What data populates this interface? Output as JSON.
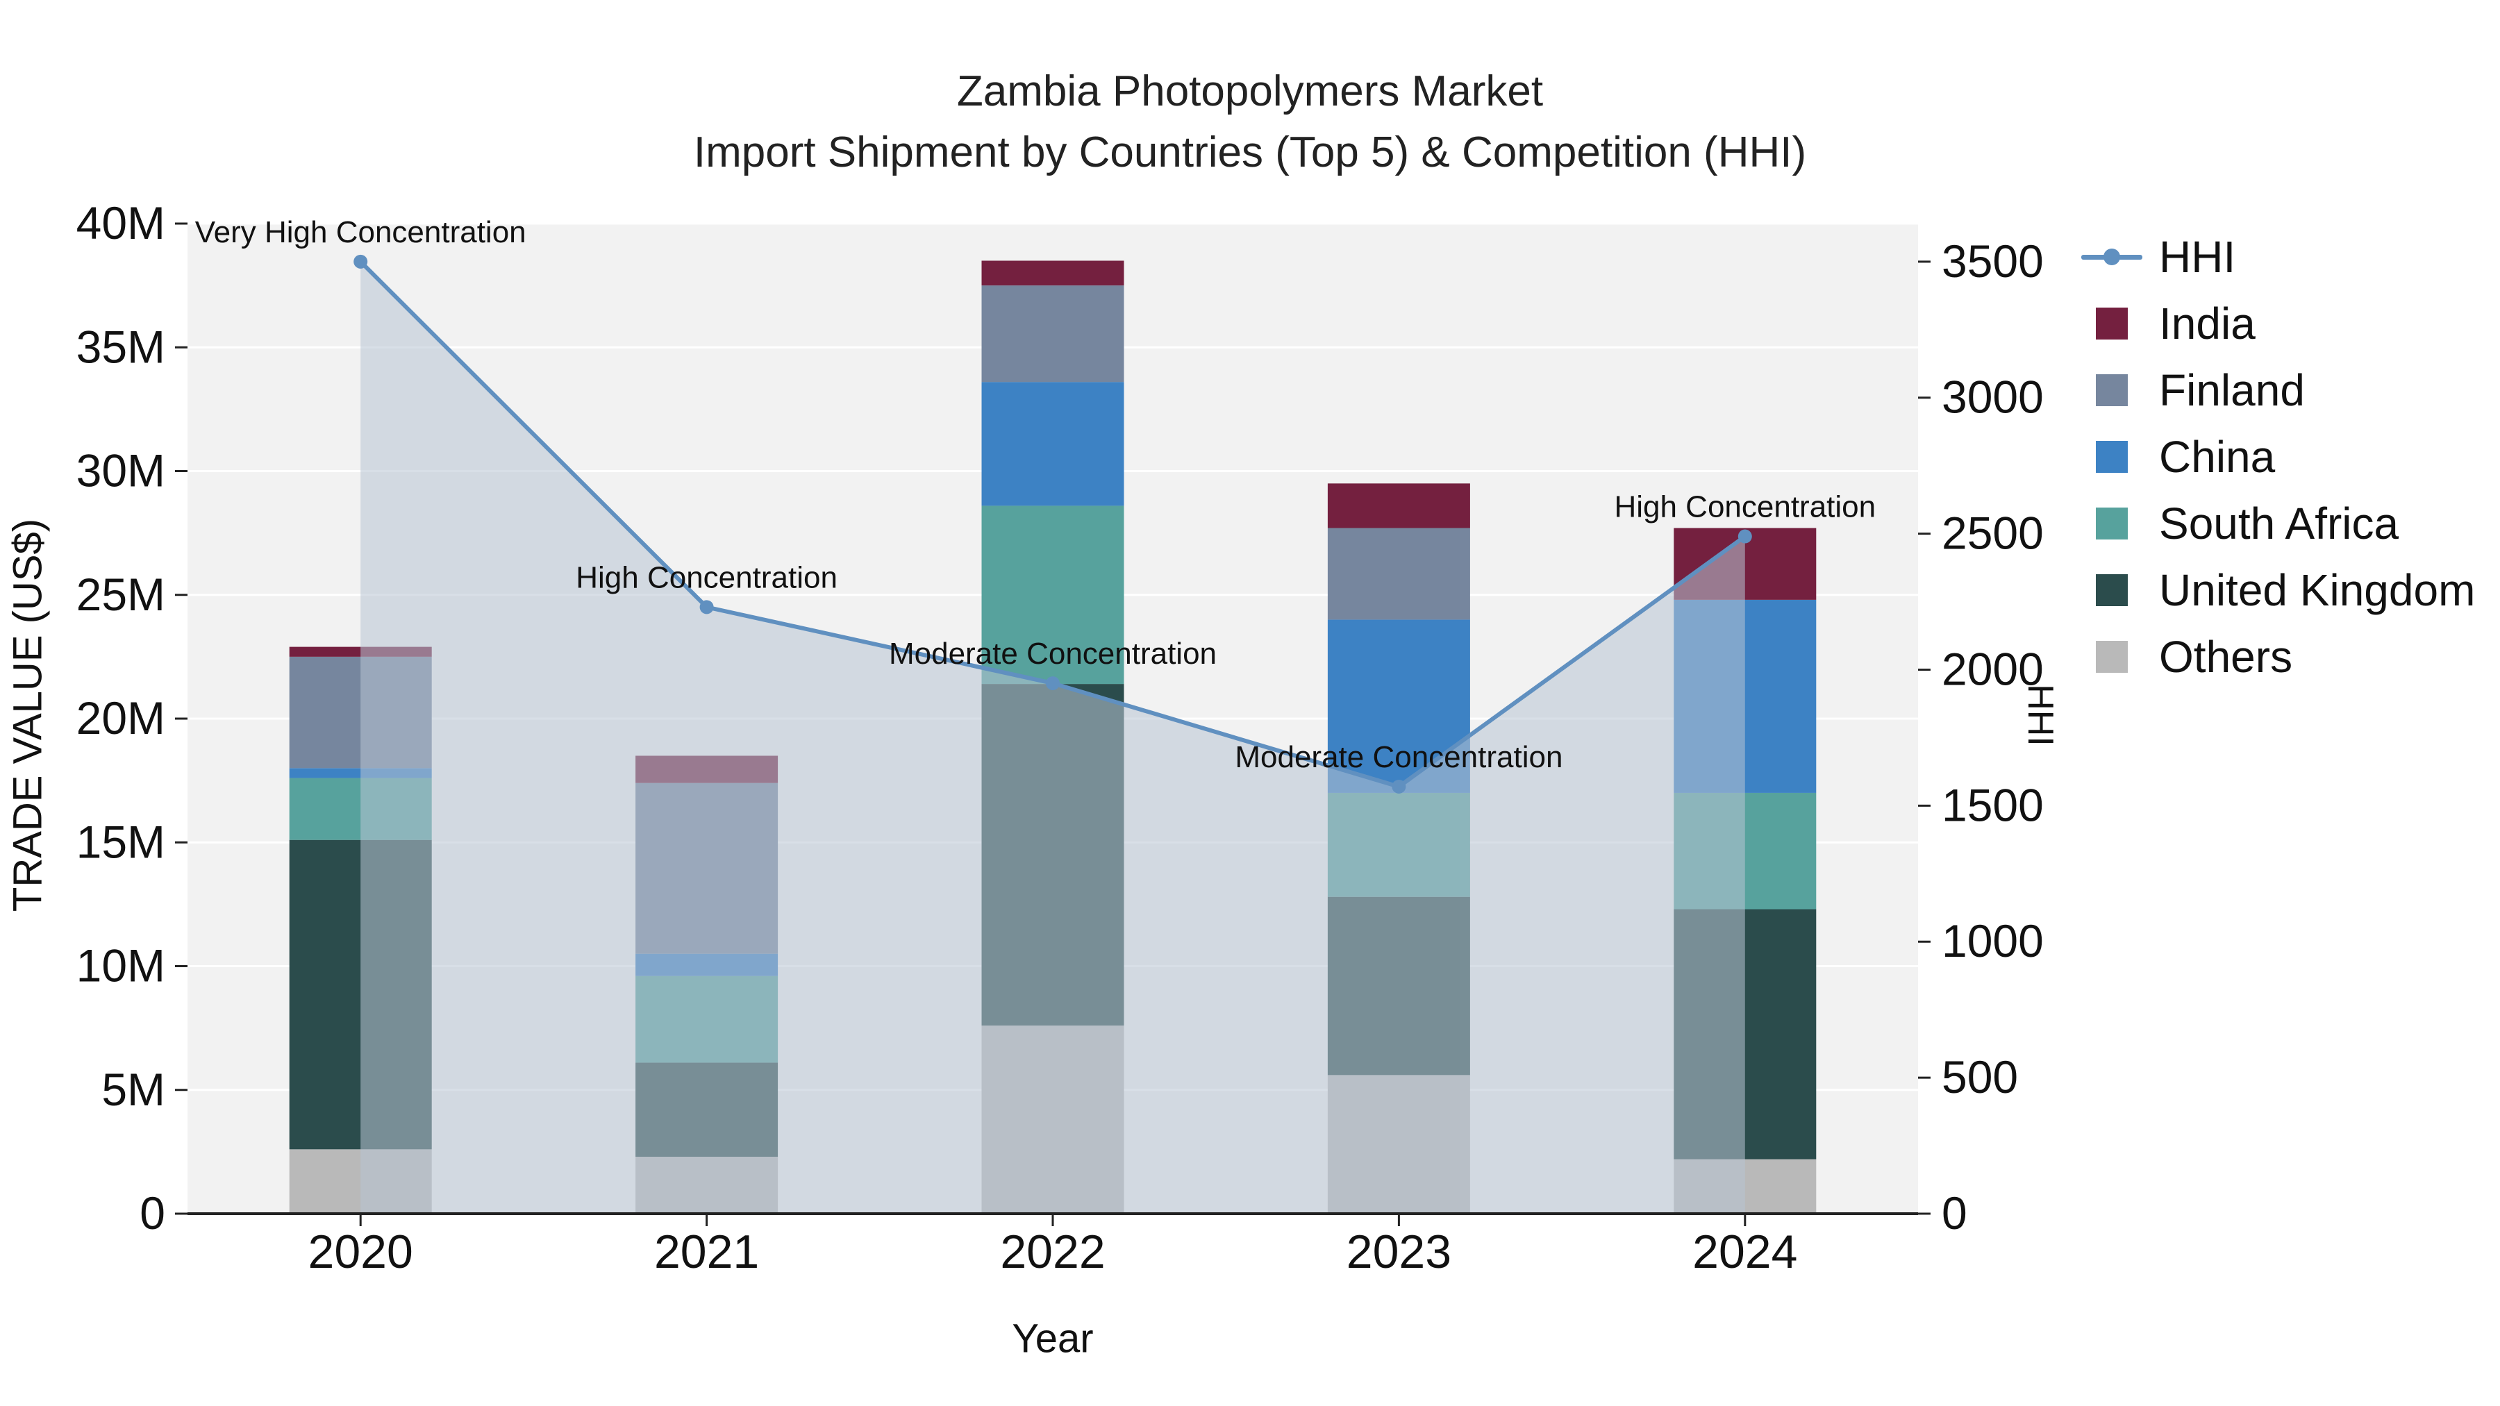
{
  "title": {
    "line1": "Zambia Photopolymers Market",
    "line2": "Import Shipment by Countries (Top 5) & Competition (HHI)"
  },
  "chart_data": {
    "type": "bar",
    "subtype": "stacked-bars-with-line-overlay",
    "unit_bars": "US$ millions",
    "unit_line": "HHI index",
    "categories": [
      "2020",
      "2021",
      "2022",
      "2023",
      "2024"
    ],
    "bar_series_bottom_to_top": [
      {
        "name": "Others",
        "color": "#b9b9b9",
        "values": [
          2.6,
          2.3,
          7.6,
          5.6,
          2.2
        ]
      },
      {
        "name": "United Kingdom",
        "color": "#2b4c4c",
        "values": [
          12.5,
          3.8,
          13.8,
          7.2,
          10.1
        ]
      },
      {
        "name": "South Africa",
        "color": "#57a29d",
        "values": [
          2.5,
          3.5,
          7.2,
          4.2,
          4.7
        ]
      },
      {
        "name": "China",
        "color": "#3d82c4",
        "values": [
          0.4,
          0.9,
          5.0,
          7.0,
          7.8
        ]
      },
      {
        "name": "Finland",
        "color": "#76869e",
        "values": [
          4.5,
          6.9,
          3.9,
          3.7,
          0
        ]
      },
      {
        "name": "India",
        "color": "#74203f",
        "values": [
          0.4,
          1.1,
          1.0,
          1.8,
          2.9
        ]
      }
    ],
    "line_series": {
      "name": "HHI",
      "color": "#6090c0",
      "area_fill": "rgba(184,196,212,0.55)",
      "values": [
        3500,
        2230,
        1950,
        1570,
        2490
      ]
    },
    "annotations": [
      "Very High Concentration",
      "High Concentration",
      "Moderate Concentration",
      "Moderate Concentration",
      "High Concentration"
    ],
    "axes": {
      "left": {
        "label": "TRADE VALUE (US$)",
        "ticks": [
          "0",
          "5M",
          "10M",
          "15M",
          "20M",
          "25M",
          "30M",
          "35M",
          "40M"
        ],
        "tick_values": [
          0,
          5,
          10,
          15,
          20,
          25,
          30,
          35,
          40
        ],
        "max": 40
      },
      "right": {
        "label": "HHI",
        "ticks": [
          "0",
          "500",
          "1000",
          "1500",
          "2000",
          "2500",
          "3000",
          "3500"
        ],
        "tick_values": [
          0,
          500,
          1000,
          1500,
          2000,
          2500,
          3000,
          3500
        ],
        "max": 3640
      },
      "x": {
        "label": "Year"
      }
    },
    "legend": [
      {
        "name": "HHI",
        "type": "line",
        "color": "#6090c0"
      },
      {
        "name": "India",
        "type": "square",
        "color": "#74203f"
      },
      {
        "name": "Finland",
        "type": "square",
        "color": "#76869e"
      },
      {
        "name": "China",
        "type": "square",
        "color": "#3d82c4"
      },
      {
        "name": "South Africa",
        "type": "square",
        "color": "#57a29d"
      },
      {
        "name": "United Kingdom",
        "type": "square",
        "color": "#2b4c4c"
      },
      {
        "name": "Others",
        "type": "square",
        "color": "#b9b9b9"
      }
    ],
    "style": {
      "plot_background": "#f2f2f2",
      "gridline_color": "#ffffff",
      "axis_color": "#222222",
      "text_color": "#111111"
    }
  }
}
